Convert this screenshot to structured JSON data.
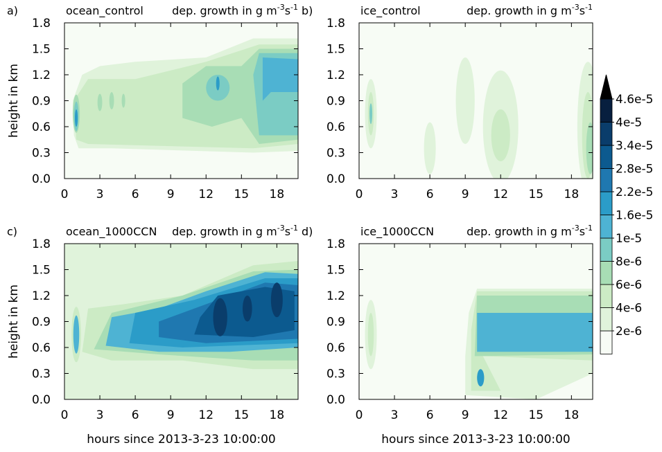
{
  "chart_data": [
    {
      "type": "contour",
      "label": "a)",
      "title": "ocean_control",
      "units": {
        "main": "dep. growth in g m",
        "exp1": "-3",
        "mid": "s",
        "exp2": "-1"
      },
      "xlim": [
        0,
        19.8
      ],
      "xticks": [
        0,
        3,
        6,
        9,
        12,
        15,
        18
      ],
      "ylim": [
        0,
        1.8
      ],
      "yticks": [
        {
          "value": 0,
          "label": "0.0"
        },
        0.3,
        0.6,
        0.9,
        1.2,
        1.5,
        1.8
      ],
      "ylabel": "height in km"
    },
    {
      "type": "contour",
      "label": "b)",
      "title": "ice_control",
      "units": {
        "main": "dep. growth in g m",
        "exp1": "-3",
        "mid": "s",
        "exp2": "-1"
      },
      "xlim": [
        0,
        19.8
      ],
      "xticks": [
        0,
        3,
        6,
        9,
        12,
        15,
        18
      ],
      "ylim": [
        0,
        1.8
      ],
      "yticks": [
        {
          "value": 0,
          "label": "0.0"
        },
        0.3,
        0.6,
        0.9,
        1.2,
        1.5,
        1.8
      ]
    },
    {
      "type": "contour",
      "label": "c)",
      "title": "ocean_1000CCN",
      "units": {
        "main": "dep. growth in g m",
        "exp1": "-3",
        "mid": "s",
        "exp2": "-1"
      },
      "xlim": [
        0,
        19.8
      ],
      "xticks": [
        0,
        3,
        6,
        9,
        12,
        15,
        18
      ],
      "ylim": [
        0,
        1.8
      ],
      "yticks": [
        {
          "value": 0,
          "label": "0.0"
        },
        0.3,
        0.6,
        0.9,
        1.2,
        1.5,
        1.8
      ],
      "ylabel": "height in km",
      "xlabel": "hours since 2013-3-23 10:00:00"
    },
    {
      "type": "contour",
      "label": "d)",
      "title": "ice_1000CCN",
      "units": {
        "main": "dep. growth in g m",
        "exp1": "-3",
        "mid": "s",
        "exp2": "-1"
      },
      "xlim": [
        0,
        19.8
      ],
      "xticks": [
        0,
        3,
        6,
        9,
        12,
        15,
        18
      ],
      "ylim": [
        0,
        1.8
      ],
      "yticks": [
        {
          "value": 0,
          "label": "0.0"
        },
        0.3,
        0.6,
        0.9,
        1.2,
        1.5,
        1.8
      ],
      "xlabel": "hours since 2013-3-23 10:00:00"
    }
  ],
  "colorbar": {
    "ticks": [
      {
        "value": 2e-06,
        "label": "2e-6"
      },
      {
        "value": 4e-06,
        "label": "4e-6"
      },
      {
        "value": 6e-06,
        "label": "6e-6"
      },
      {
        "value": 8e-06,
        "label": "8e-6"
      },
      {
        "value": 1e-05,
        "label": "1e-5"
      },
      {
        "value": 1.6e-05,
        "label": "1.6e-5"
      },
      {
        "value": 2.2e-05,
        "label": "2.2e-5"
      },
      {
        "value": 2.8e-05,
        "label": "2.8e-5"
      },
      {
        "value": 3.4e-05,
        "label": "3.4e-5"
      },
      {
        "value": 4e-05,
        "label": "4e-5"
      },
      {
        "value": 4.6e-05,
        "label": "4.6e-5"
      }
    ],
    "colors": [
      "#f7fcf5",
      "#e0f3db",
      "#ccebc5",
      "#a8ddb5",
      "#7bccc4",
      "#4eb3d3",
      "#2b9cc8",
      "#1f78b0",
      "#0c5a8f",
      "#0a3d6b",
      "#071f3f",
      "#000000"
    ]
  }
}
